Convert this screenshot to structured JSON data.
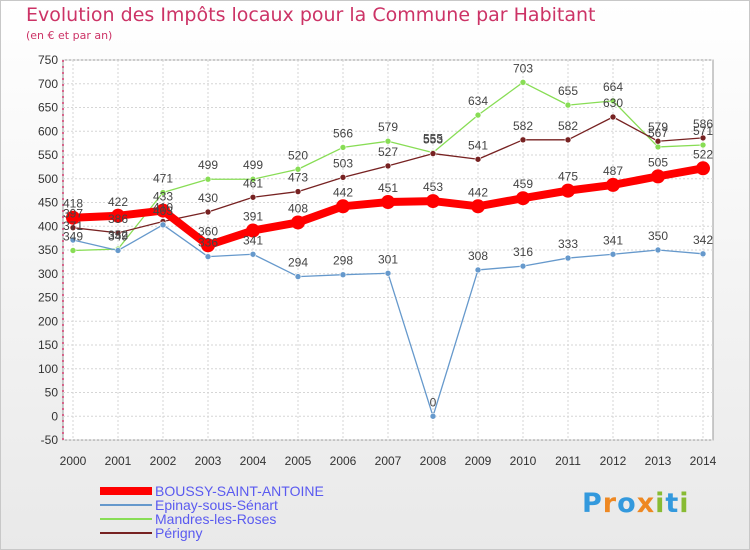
{
  "chart_data": {
    "type": "line",
    "title": "Evolution des Impôts locaux pour la Commune par Habitant",
    "subtitle": "(en € et par an)",
    "xlabel": "",
    "ylabel": "",
    "x": [
      "2000",
      "2001",
      "2002",
      "2003",
      "2004",
      "2005",
      "2006",
      "2007",
      "2008",
      "2009",
      "2010",
      "2011",
      "2012",
      "2013",
      "2014"
    ],
    "ylim": [
      -50,
      750
    ],
    "yticks": [
      -50,
      0,
      50,
      100,
      150,
      200,
      250,
      300,
      350,
      400,
      450,
      500,
      550,
      600,
      650,
      700,
      750
    ],
    "grid": true,
    "legend_position": "bottom-left",
    "series": [
      {
        "name": "BOUSSY-SAINT-ANTOINE",
        "color": "#ff0000",
        "values": [
          418,
          422,
          433,
          360,
          391,
          408,
          442,
          451,
          453,
          442,
          459,
          475,
          487,
          505,
          522
        ]
      },
      {
        "name": "Epinay-sous-Sénart",
        "color": "#6699cc",
        "values": [
          371,
          349,
          403,
          336,
          341,
          294,
          298,
          301,
          0,
          308,
          316,
          333,
          341,
          350,
          342
        ]
      },
      {
        "name": "Mandres-les-Roses",
        "color": "#88dd55",
        "values": [
          349,
          352,
          471,
          499,
          499,
          520,
          566,
          579,
          555,
          634,
          703,
          655,
          664,
          567,
          571
        ]
      },
      {
        "name": "Périgny",
        "color": "#772222",
        "values": [
          397,
          386,
          410,
          430,
          461,
          473,
          503,
          527,
          553,
          541,
          582,
          582,
          630,
          579,
          586
        ]
      }
    ]
  },
  "brand": {
    "letters": [
      "P",
      "r",
      "o",
      "x",
      "i",
      "t",
      "i"
    ],
    "colors": [
      "#3399dd",
      "#ee8822",
      "#3399dd",
      "#ee8822",
      "#88bb33",
      "#3399dd",
      "#88bb33"
    ]
  }
}
